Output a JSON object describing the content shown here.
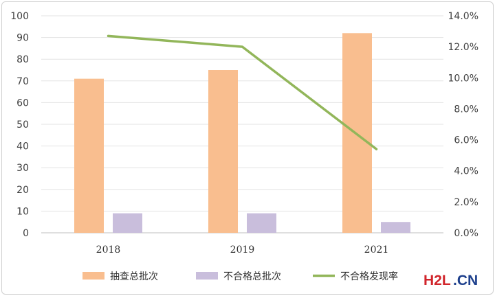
{
  "chart_data": {
    "type": "bar",
    "categories": [
      "2018",
      "2019",
      "2021"
    ],
    "series": [
      {
        "name": "抽查总批次",
        "kind": "bar",
        "axis": "left",
        "color": "#f9be8f",
        "values": [
          71,
          75,
          92
        ]
      },
      {
        "name": "不合格总批次",
        "kind": "bar",
        "axis": "left",
        "color": "#c9bedc",
        "values": [
          9,
          9,
          5
        ]
      },
      {
        "name": "不合格发现率",
        "kind": "line",
        "axis": "right",
        "color": "#92b65a",
        "values": [
          0.127,
          0.12,
          0.054
        ]
      }
    ],
    "left_axis": {
      "min": 0,
      "max": 100,
      "step": 10,
      "ticks": [
        "0",
        "10",
        "20",
        "30",
        "40",
        "50",
        "60",
        "70",
        "80",
        "90",
        "100"
      ]
    },
    "right_axis": {
      "min": 0,
      "max": 0.14,
      "step": 0.02,
      "ticks": [
        "0.0%",
        "2.0%",
        "4.0%",
        "6.0%",
        "8.0%",
        "10.0%",
        "12.0%",
        "14.0%"
      ]
    },
    "grid": true,
    "legend_position": "bottom"
  },
  "watermark": {
    "part1": "H2L",
    "part2": ".CN"
  }
}
